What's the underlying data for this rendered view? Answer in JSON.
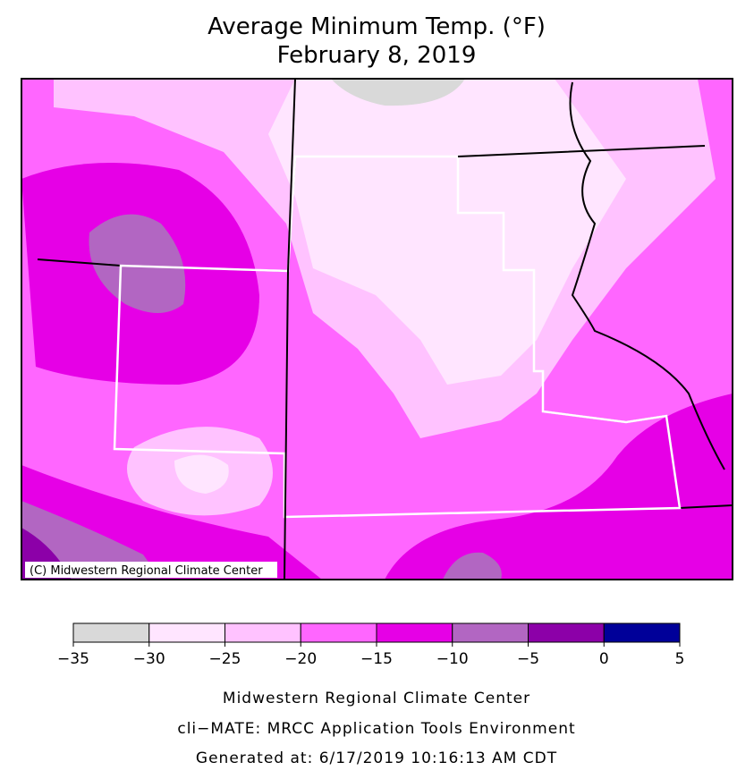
{
  "title": [
    "Average Minimum Temp. (°F)",
    "February 8, 2019"
  ],
  "copyright": "(C) Midwestern Regional Climate Center",
  "legend": {
    "colors": [
      "#d9d9d9",
      "#ffe5ff",
      "#ffc2ff",
      "#ff66ff",
      "#e600e6",
      "#b266c2",
      "#8c00a8",
      "#000099"
    ],
    "ticks": [
      {
        "value": -35,
        "label": "−35"
      },
      {
        "value": -30,
        "label": "−30"
      },
      {
        "value": -25,
        "label": "−25"
      },
      {
        "value": -20,
        "label": "−20"
      },
      {
        "value": -15,
        "label": "−15"
      },
      {
        "value": -10,
        "label": "−10"
      },
      {
        "value": -5,
        "label": "−5"
      },
      0,
      5
    ]
  },
  "footer": [
    "Midwestern Regional Climate Center",
    "cli−MATE: MRCC Application Tools Environment",
    "Generated at: 6/17/2019 10:16:13 AM CDT"
  ]
}
